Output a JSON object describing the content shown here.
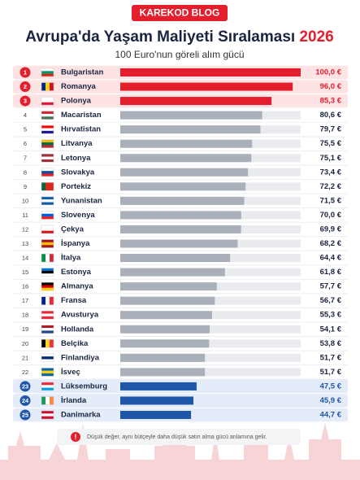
{
  "badge": "KAREKOD BLOG",
  "chart_data": {
    "type": "hbar",
    "title": "Avrupa'da Yaşam Maliyeti Sıralaması",
    "title_year": "2026",
    "subtitle": "100 Euro'nun göreli alım gücü",
    "ranks": [
      1,
      2,
      3,
      4,
      5,
      6,
      7,
      8,
      9,
      10,
      11,
      12,
      13,
      14,
      15,
      16,
      17,
      18,
      19,
      20,
      21,
      22,
      23,
      24,
      25
    ],
    "categories": [
      "Bulgaristan",
      "Romanya",
      "Polonya",
      "Macaristan",
      "Hırvatistan",
      "Litvanya",
      "Letonya",
      "Slovakya",
      "Portekiz",
      "Yunanistan",
      "Slovenya",
      "Çekya",
      "İspanya",
      "İtalya",
      "Estonya",
      "Almanya",
      "Fransa",
      "Avusturya",
      "Hollanda",
      "Belçika",
      "Finlandiya",
      "İsveç",
      "Lüksemburg",
      "İrlanda",
      "Danimarka"
    ],
    "values": [
      100.0,
      96.0,
      85.3,
      80.6,
      79.7,
      75.5,
      75.1,
      73.4,
      72.2,
      71.5,
      70.0,
      69.9,
      68.2,
      64.4,
      61.8,
      57.7,
      56.7,
      55.3,
      54.1,
      53.8,
      51.7,
      51.7,
      47.5,
      45.9,
      44.7
    ],
    "value_labels": [
      "100,0 €",
      "96,0 €",
      "85,3 €",
      "80,6 €",
      "79,7 €",
      "75,5 €",
      "75,1 €",
      "73,4 €",
      "72,2 €",
      "71,5 €",
      "70,0 €",
      "69,9 €",
      "68,2 €",
      "64,4 €",
      "61,8 €",
      "57,7 €",
      "56,7 €",
      "55,3 €",
      "54,1 €",
      "53,8 €",
      "51,7 €",
      "51,7 €",
      "47,5 €",
      "45,9 €",
      "44,7 €"
    ],
    "xlim": [
      9,
      100
    ],
    "highlight_count": 3,
    "colors": {
      "top": "#e31e2d",
      "middle": "#a9b0ba",
      "bottom": "#1f56a8"
    },
    "footnote": "Düşük değer, aynı bütçeyle daha düşük satın alma gücü anlamına gelir."
  }
}
